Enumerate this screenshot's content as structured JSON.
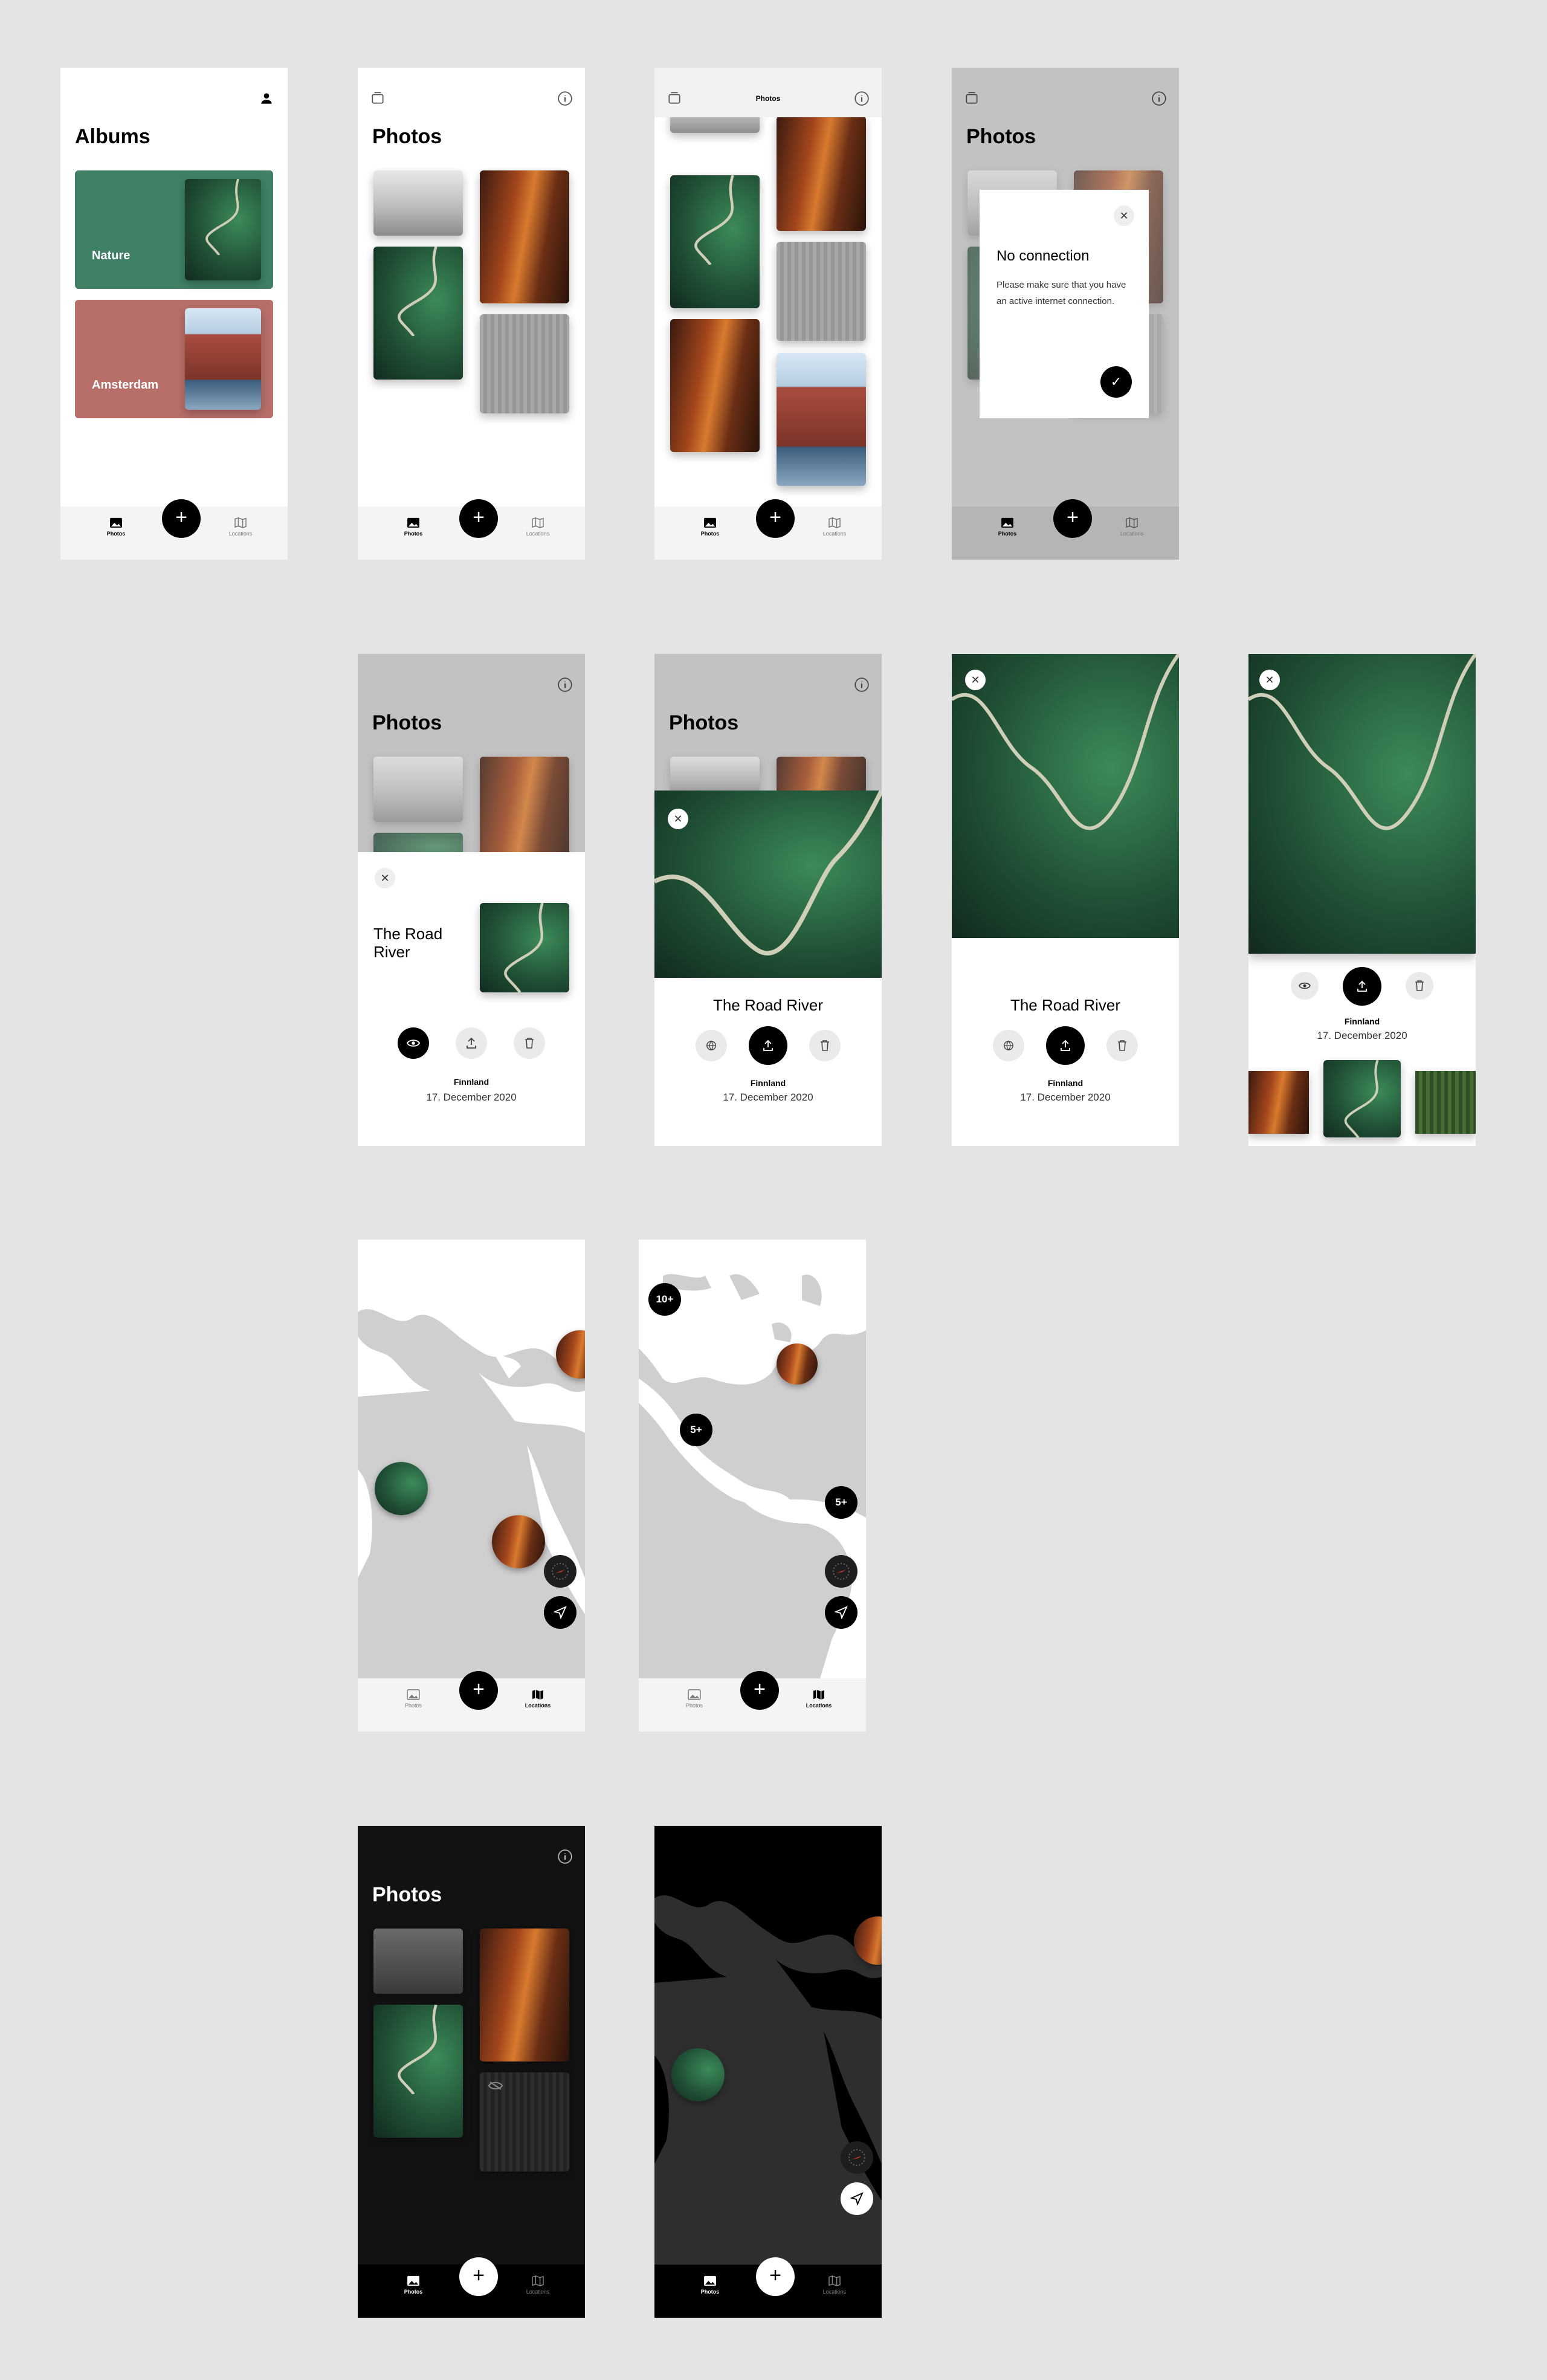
{
  "labels": {
    "albums_title": "Albums",
    "photos_title": "Photos",
    "album_nature": "Nature",
    "album_amsterdam": "Amsterdam",
    "nav_photos": "Photos",
    "nav_locations": "Locations",
    "fab_plus": "+",
    "close_x": "✕",
    "check": "✓",
    "info_i": "i"
  },
  "modal": {
    "title": "No connection",
    "body": "Please make sure that you have an active internet connection."
  },
  "detail": {
    "title_inline": "The Road River",
    "title_line1": "The Road",
    "title_line2": "River",
    "location": "Finnland",
    "date": "17. December 2020"
  },
  "map": {
    "cluster_10": "10+",
    "cluster_5a": "5+",
    "cluster_5b": "5+"
  },
  "colors": {
    "nature_card": "#3f8066",
    "amsterdam_card": "#b86f6a",
    "dark_bg": "#121212",
    "map_gray": "#cfcfcf"
  }
}
